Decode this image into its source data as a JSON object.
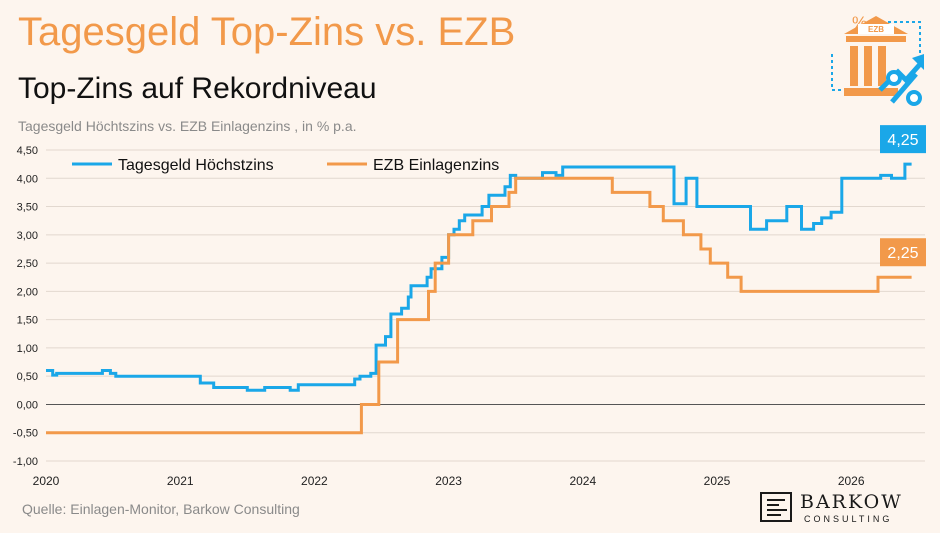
{
  "header": {
    "title": "Tagesgeld Top-Zins vs. EZB",
    "subtitle": "Top-Zins auf Rekordniveau",
    "description": "Tagesgeld Höchtszins vs. EZB Einlagenzins , in % p.a."
  },
  "footer": {
    "source": "Quelle: Einlagen-Monitor, Barkow Consulting"
  },
  "logo": {
    "name": "BARKOW",
    "sub": "CONSULTING"
  },
  "deco_icon": {
    "name": "bank-percent-icon",
    "label": "EZB"
  },
  "colors": {
    "tagesgeld": "#1aa7e8",
    "ezb": "#f2994a",
    "title": "#f2994a"
  },
  "chart_data": {
    "type": "line",
    "title": "Tagesgeld Top-Zins vs. EZB",
    "ylim": [
      -1.0,
      4.5
    ],
    "xlim": [
      2020.0,
      2026.55
    ],
    "y_ticks": [
      "4,50",
      "4,00",
      "3,50",
      "3,00",
      "2,50",
      "2,00",
      "1,50",
      "1,00",
      "0,50",
      "0,00",
      "-0,50",
      "-1,00"
    ],
    "y_tick_values": [
      4.5,
      4.0,
      3.5,
      3.0,
      2.5,
      2.0,
      1.5,
      1.0,
      0.5,
      0.0,
      -0.5,
      -1.0
    ],
    "x_ticks": [
      "2020",
      "2021",
      "2022",
      "2023",
      "2024",
      "2025",
      "2026"
    ],
    "x_tick_values": [
      2020,
      2021,
      2022,
      2023,
      2024,
      2025,
      2026
    ],
    "grid": "horizontal",
    "legend_position": "top-left",
    "callouts": [
      {
        "series": "Tagesgeld Höchstzins",
        "label": "4,25"
      },
      {
        "series": "EZB Einlagenzins",
        "label": "2,25"
      }
    ],
    "series": [
      {
        "name": "Tagesgeld Höchstzins",
        "color": "#1aa7e8",
        "points": [
          [
            2020.0,
            0.6
          ],
          [
            2020.05,
            0.6
          ],
          [
            2020.05,
            0.52
          ],
          [
            2020.08,
            0.52
          ],
          [
            2020.08,
            0.55
          ],
          [
            2020.42,
            0.55
          ],
          [
            2020.42,
            0.6
          ],
          [
            2020.48,
            0.6
          ],
          [
            2020.48,
            0.55
          ],
          [
            2020.52,
            0.55
          ],
          [
            2020.52,
            0.5
          ],
          [
            2021.15,
            0.5
          ],
          [
            2021.15,
            0.38
          ],
          [
            2021.25,
            0.38
          ],
          [
            2021.25,
            0.3
          ],
          [
            2021.5,
            0.3
          ],
          [
            2021.5,
            0.25
          ],
          [
            2021.63,
            0.25
          ],
          [
            2021.63,
            0.3
          ],
          [
            2021.82,
            0.3
          ],
          [
            2021.82,
            0.25
          ],
          [
            2021.88,
            0.25
          ],
          [
            2021.88,
            0.35
          ],
          [
            2022.3,
            0.35
          ],
          [
            2022.3,
            0.45
          ],
          [
            2022.34,
            0.45
          ],
          [
            2022.34,
            0.5
          ],
          [
            2022.42,
            0.5
          ],
          [
            2022.42,
            0.55
          ],
          [
            2022.46,
            0.55
          ],
          [
            2022.46,
            1.05
          ],
          [
            2022.53,
            1.05
          ],
          [
            2022.53,
            1.2
          ],
          [
            2022.57,
            1.2
          ],
          [
            2022.57,
            1.6
          ],
          [
            2022.65,
            1.6
          ],
          [
            2022.65,
            1.7
          ],
          [
            2022.7,
            1.7
          ],
          [
            2022.7,
            1.9
          ],
          [
            2022.72,
            1.9
          ],
          [
            2022.72,
            2.1
          ],
          [
            2022.84,
            2.1
          ],
          [
            2022.84,
            2.25
          ],
          [
            2022.87,
            2.25
          ],
          [
            2022.87,
            2.4
          ],
          [
            2022.95,
            2.4
          ],
          [
            2022.95,
            2.6
          ],
          [
            2023.0,
            2.6
          ],
          [
            2023.0,
            3.0
          ],
          [
            2023.04,
            3.0
          ],
          [
            2023.04,
            3.1
          ],
          [
            2023.08,
            3.1
          ],
          [
            2023.08,
            3.25
          ],
          [
            2023.12,
            3.25
          ],
          [
            2023.12,
            3.35
          ],
          [
            2023.25,
            3.35
          ],
          [
            2023.25,
            3.5
          ],
          [
            2023.3,
            3.5
          ],
          [
            2023.3,
            3.7
          ],
          [
            2023.42,
            3.7
          ],
          [
            2023.42,
            3.85
          ],
          [
            2023.46,
            3.85
          ],
          [
            2023.46,
            4.05
          ],
          [
            2023.5,
            4.05
          ],
          [
            2023.5,
            4.0
          ],
          [
            2023.7,
            4.0
          ],
          [
            2023.7,
            4.1
          ],
          [
            2023.8,
            4.1
          ],
          [
            2023.8,
            4.05
          ],
          [
            2023.85,
            4.05
          ],
          [
            2023.85,
            4.2
          ],
          [
            2024.68,
            4.2
          ],
          [
            2024.68,
            3.55
          ],
          [
            2024.77,
            3.55
          ],
          [
            2024.77,
            4.0
          ],
          [
            2024.85,
            4.0
          ],
          [
            2024.85,
            3.5
          ],
          [
            2025.25,
            3.5
          ],
          [
            2025.25,
            3.1
          ],
          [
            2025.37,
            3.1
          ],
          [
            2025.37,
            3.25
          ],
          [
            2025.52,
            3.25
          ],
          [
            2025.52,
            3.5
          ],
          [
            2025.63,
            3.5
          ],
          [
            2025.63,
            3.1
          ],
          [
            2025.72,
            3.1
          ],
          [
            2025.72,
            3.2
          ],
          [
            2025.78,
            3.2
          ],
          [
            2025.78,
            3.3
          ],
          [
            2025.85,
            3.3
          ],
          [
            2025.85,
            3.4
          ],
          [
            2025.93,
            3.4
          ],
          [
            2025.93,
            4.0
          ],
          [
            2026.22,
            4.0
          ],
          [
            2026.22,
            4.05
          ],
          [
            2026.3,
            4.05
          ],
          [
            2026.3,
            4.0
          ],
          [
            2026.4,
            4.0
          ],
          [
            2026.4,
            4.25
          ],
          [
            2026.45,
            4.25
          ]
        ]
      },
      {
        "name": "EZB Einlagenzins",
        "color": "#f2994a",
        "points": [
          [
            2020.0,
            -0.5
          ],
          [
            2022.35,
            -0.5
          ],
          [
            2022.35,
            0.0
          ],
          [
            2022.48,
            0.0
          ],
          [
            2022.48,
            0.75
          ],
          [
            2022.62,
            0.75
          ],
          [
            2022.62,
            1.5
          ],
          [
            2022.85,
            1.5
          ],
          [
            2022.85,
            2.0
          ],
          [
            2022.9,
            2.0
          ],
          [
            2022.9,
            2.5
          ],
          [
            2023.0,
            2.5
          ],
          [
            2023.0,
            3.0
          ],
          [
            2023.18,
            3.0
          ],
          [
            2023.18,
            3.25
          ],
          [
            2023.32,
            3.25
          ],
          [
            2023.32,
            3.5
          ],
          [
            2023.45,
            3.5
          ],
          [
            2023.45,
            3.75
          ],
          [
            2023.5,
            3.75
          ],
          [
            2023.5,
            4.0
          ],
          [
            2024.22,
            4.0
          ],
          [
            2024.22,
            3.75
          ],
          [
            2024.5,
            3.75
          ],
          [
            2024.5,
            3.5
          ],
          [
            2024.6,
            3.5
          ],
          [
            2024.6,
            3.25
          ],
          [
            2024.75,
            3.25
          ],
          [
            2024.75,
            3.0
          ],
          [
            2024.88,
            3.0
          ],
          [
            2024.88,
            2.75
          ],
          [
            2024.95,
            2.75
          ],
          [
            2024.95,
            2.5
          ],
          [
            2025.08,
            2.5
          ],
          [
            2025.08,
            2.25
          ],
          [
            2025.18,
            2.25
          ],
          [
            2025.18,
            2.0
          ],
          [
            2026.2,
            2.0
          ],
          [
            2026.2,
            2.25
          ],
          [
            2026.45,
            2.25
          ]
        ]
      }
    ]
  }
}
